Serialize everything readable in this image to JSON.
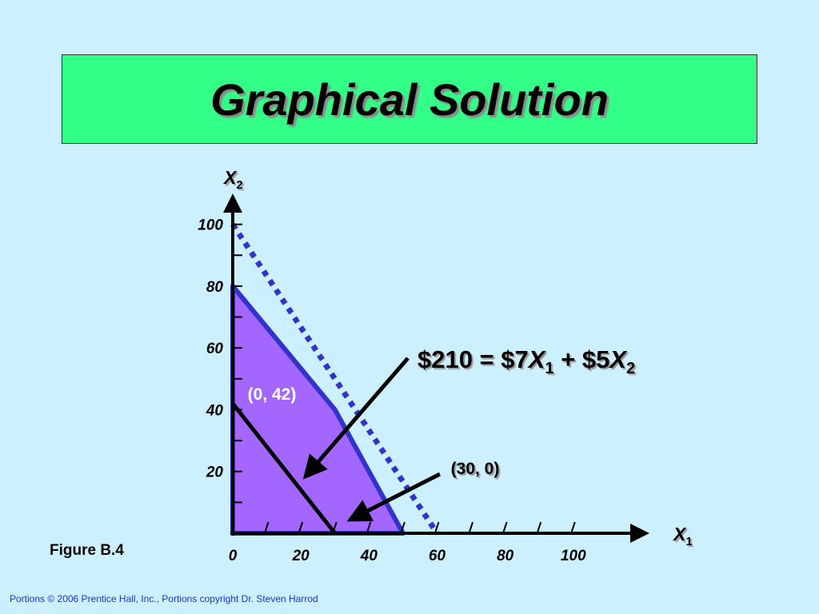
{
  "title": "Graphical Solution",
  "figure_label": "Figure B.4",
  "footer": "Portions © 2006 Prentice Hall, Inc., Portions copyright  Dr. Steven Harrod",
  "chart_data": {
    "type": "line",
    "x_label": {
      "text": "X",
      "subscript": "1"
    },
    "y_label": {
      "text": "X",
      "subscript": "2"
    },
    "xlim": [
      0,
      120
    ],
    "ylim": [
      0,
      110
    ],
    "xticks": [
      0,
      20,
      40,
      60,
      80,
      100
    ],
    "yticks": [
      20,
      40,
      60,
      80,
      100
    ],
    "xminor_ticks": [
      10,
      20,
      30,
      40,
      50,
      60,
      70,
      80,
      90,
      100
    ],
    "yminor_ticks": [
      10,
      20,
      30,
      40,
      50,
      60,
      70,
      80,
      90,
      100
    ],
    "series": [
      {
        "color": "#a366ff",
        "edge_color": "#3333cc",
        "fill": true,
        "x": [
          0,
          0,
          30,
          50
        ],
        "values": [
          0,
          80,
          40,
          0
        ]
      },
      {
        "color": "#3333cc",
        "dashed": true,
        "x": [
          0,
          60
        ],
        "values": [
          100,
          0
        ]
      },
      {
        "color": "#000000",
        "x": [
          0,
          30
        ],
        "values": [
          42,
          0
        ]
      }
    ],
    "annotations": [
      {
        "text": "(0, 42)",
        "color": "#ffffff"
      },
      {
        "text": "(30, 0)",
        "color": "#000000"
      }
    ],
    "equation": [
      {
        "text": "$210 = $7"
      },
      {
        "text": "X",
        "italic": true
      },
      {
        "text": "1",
        "sub": true
      },
      {
        "text": " + $5"
      },
      {
        "text": "X",
        "italic": true
      },
      {
        "text": "2",
        "sub": true
      }
    ]
  }
}
